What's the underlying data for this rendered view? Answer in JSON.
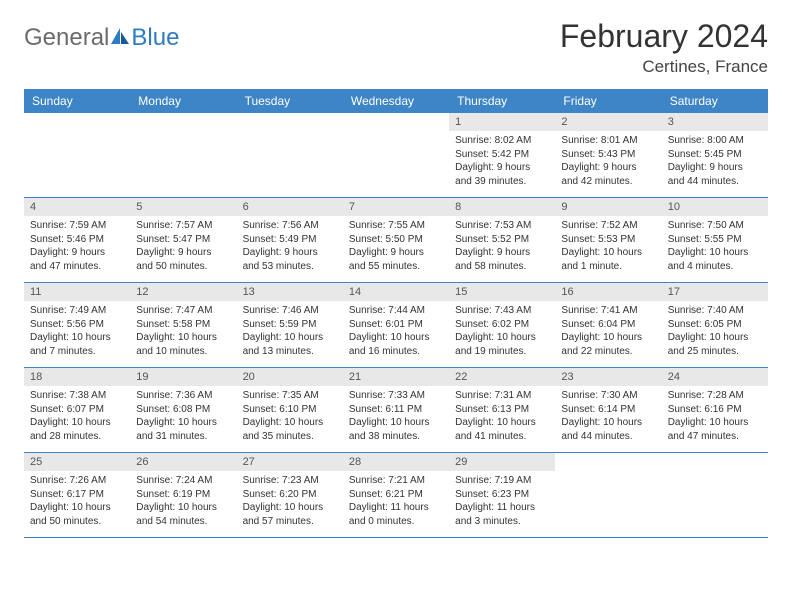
{
  "logo": {
    "part1": "General",
    "part2": "Blue"
  },
  "title": "February 2024",
  "location": "Certines, France",
  "colors": {
    "header_bg": "#3d85c6",
    "header_text": "#ffffff",
    "daynum_bg": "#e8e8e8",
    "border": "#3d85c6",
    "logo_gray": "#6b6b6b",
    "logo_blue": "#2f7bbf"
  },
  "weekdays": [
    "Sunday",
    "Monday",
    "Tuesday",
    "Wednesday",
    "Thursday",
    "Friday",
    "Saturday"
  ],
  "weeks": [
    [
      {
        "empty": true
      },
      {
        "empty": true
      },
      {
        "empty": true
      },
      {
        "empty": true
      },
      {
        "num": "1",
        "sunrise": "Sunrise: 8:02 AM",
        "sunset": "Sunset: 5:42 PM",
        "daylight": "Daylight: 9 hours and 39 minutes."
      },
      {
        "num": "2",
        "sunrise": "Sunrise: 8:01 AM",
        "sunset": "Sunset: 5:43 PM",
        "daylight": "Daylight: 9 hours and 42 minutes."
      },
      {
        "num": "3",
        "sunrise": "Sunrise: 8:00 AM",
        "sunset": "Sunset: 5:45 PM",
        "daylight": "Daylight: 9 hours and 44 minutes."
      }
    ],
    [
      {
        "num": "4",
        "sunrise": "Sunrise: 7:59 AM",
        "sunset": "Sunset: 5:46 PM",
        "daylight": "Daylight: 9 hours and 47 minutes."
      },
      {
        "num": "5",
        "sunrise": "Sunrise: 7:57 AM",
        "sunset": "Sunset: 5:47 PM",
        "daylight": "Daylight: 9 hours and 50 minutes."
      },
      {
        "num": "6",
        "sunrise": "Sunrise: 7:56 AM",
        "sunset": "Sunset: 5:49 PM",
        "daylight": "Daylight: 9 hours and 53 minutes."
      },
      {
        "num": "7",
        "sunrise": "Sunrise: 7:55 AM",
        "sunset": "Sunset: 5:50 PM",
        "daylight": "Daylight: 9 hours and 55 minutes."
      },
      {
        "num": "8",
        "sunrise": "Sunrise: 7:53 AM",
        "sunset": "Sunset: 5:52 PM",
        "daylight": "Daylight: 9 hours and 58 minutes."
      },
      {
        "num": "9",
        "sunrise": "Sunrise: 7:52 AM",
        "sunset": "Sunset: 5:53 PM",
        "daylight": "Daylight: 10 hours and 1 minute."
      },
      {
        "num": "10",
        "sunrise": "Sunrise: 7:50 AM",
        "sunset": "Sunset: 5:55 PM",
        "daylight": "Daylight: 10 hours and 4 minutes."
      }
    ],
    [
      {
        "num": "11",
        "sunrise": "Sunrise: 7:49 AM",
        "sunset": "Sunset: 5:56 PM",
        "daylight": "Daylight: 10 hours and 7 minutes."
      },
      {
        "num": "12",
        "sunrise": "Sunrise: 7:47 AM",
        "sunset": "Sunset: 5:58 PM",
        "daylight": "Daylight: 10 hours and 10 minutes."
      },
      {
        "num": "13",
        "sunrise": "Sunrise: 7:46 AM",
        "sunset": "Sunset: 5:59 PM",
        "daylight": "Daylight: 10 hours and 13 minutes."
      },
      {
        "num": "14",
        "sunrise": "Sunrise: 7:44 AM",
        "sunset": "Sunset: 6:01 PM",
        "daylight": "Daylight: 10 hours and 16 minutes."
      },
      {
        "num": "15",
        "sunrise": "Sunrise: 7:43 AM",
        "sunset": "Sunset: 6:02 PM",
        "daylight": "Daylight: 10 hours and 19 minutes."
      },
      {
        "num": "16",
        "sunrise": "Sunrise: 7:41 AM",
        "sunset": "Sunset: 6:04 PM",
        "daylight": "Daylight: 10 hours and 22 minutes."
      },
      {
        "num": "17",
        "sunrise": "Sunrise: 7:40 AM",
        "sunset": "Sunset: 6:05 PM",
        "daylight": "Daylight: 10 hours and 25 minutes."
      }
    ],
    [
      {
        "num": "18",
        "sunrise": "Sunrise: 7:38 AM",
        "sunset": "Sunset: 6:07 PM",
        "daylight": "Daylight: 10 hours and 28 minutes."
      },
      {
        "num": "19",
        "sunrise": "Sunrise: 7:36 AM",
        "sunset": "Sunset: 6:08 PM",
        "daylight": "Daylight: 10 hours and 31 minutes."
      },
      {
        "num": "20",
        "sunrise": "Sunrise: 7:35 AM",
        "sunset": "Sunset: 6:10 PM",
        "daylight": "Daylight: 10 hours and 35 minutes."
      },
      {
        "num": "21",
        "sunrise": "Sunrise: 7:33 AM",
        "sunset": "Sunset: 6:11 PM",
        "daylight": "Daylight: 10 hours and 38 minutes."
      },
      {
        "num": "22",
        "sunrise": "Sunrise: 7:31 AM",
        "sunset": "Sunset: 6:13 PM",
        "daylight": "Daylight: 10 hours and 41 minutes."
      },
      {
        "num": "23",
        "sunrise": "Sunrise: 7:30 AM",
        "sunset": "Sunset: 6:14 PM",
        "daylight": "Daylight: 10 hours and 44 minutes."
      },
      {
        "num": "24",
        "sunrise": "Sunrise: 7:28 AM",
        "sunset": "Sunset: 6:16 PM",
        "daylight": "Daylight: 10 hours and 47 minutes."
      }
    ],
    [
      {
        "num": "25",
        "sunrise": "Sunrise: 7:26 AM",
        "sunset": "Sunset: 6:17 PM",
        "daylight": "Daylight: 10 hours and 50 minutes."
      },
      {
        "num": "26",
        "sunrise": "Sunrise: 7:24 AM",
        "sunset": "Sunset: 6:19 PM",
        "daylight": "Daylight: 10 hours and 54 minutes."
      },
      {
        "num": "27",
        "sunrise": "Sunrise: 7:23 AM",
        "sunset": "Sunset: 6:20 PM",
        "daylight": "Daylight: 10 hours and 57 minutes."
      },
      {
        "num": "28",
        "sunrise": "Sunrise: 7:21 AM",
        "sunset": "Sunset: 6:21 PM",
        "daylight": "Daylight: 11 hours and 0 minutes."
      },
      {
        "num": "29",
        "sunrise": "Sunrise: 7:19 AM",
        "sunset": "Sunset: 6:23 PM",
        "daylight": "Daylight: 11 hours and 3 minutes."
      },
      {
        "empty": true
      },
      {
        "empty": true
      }
    ]
  ]
}
